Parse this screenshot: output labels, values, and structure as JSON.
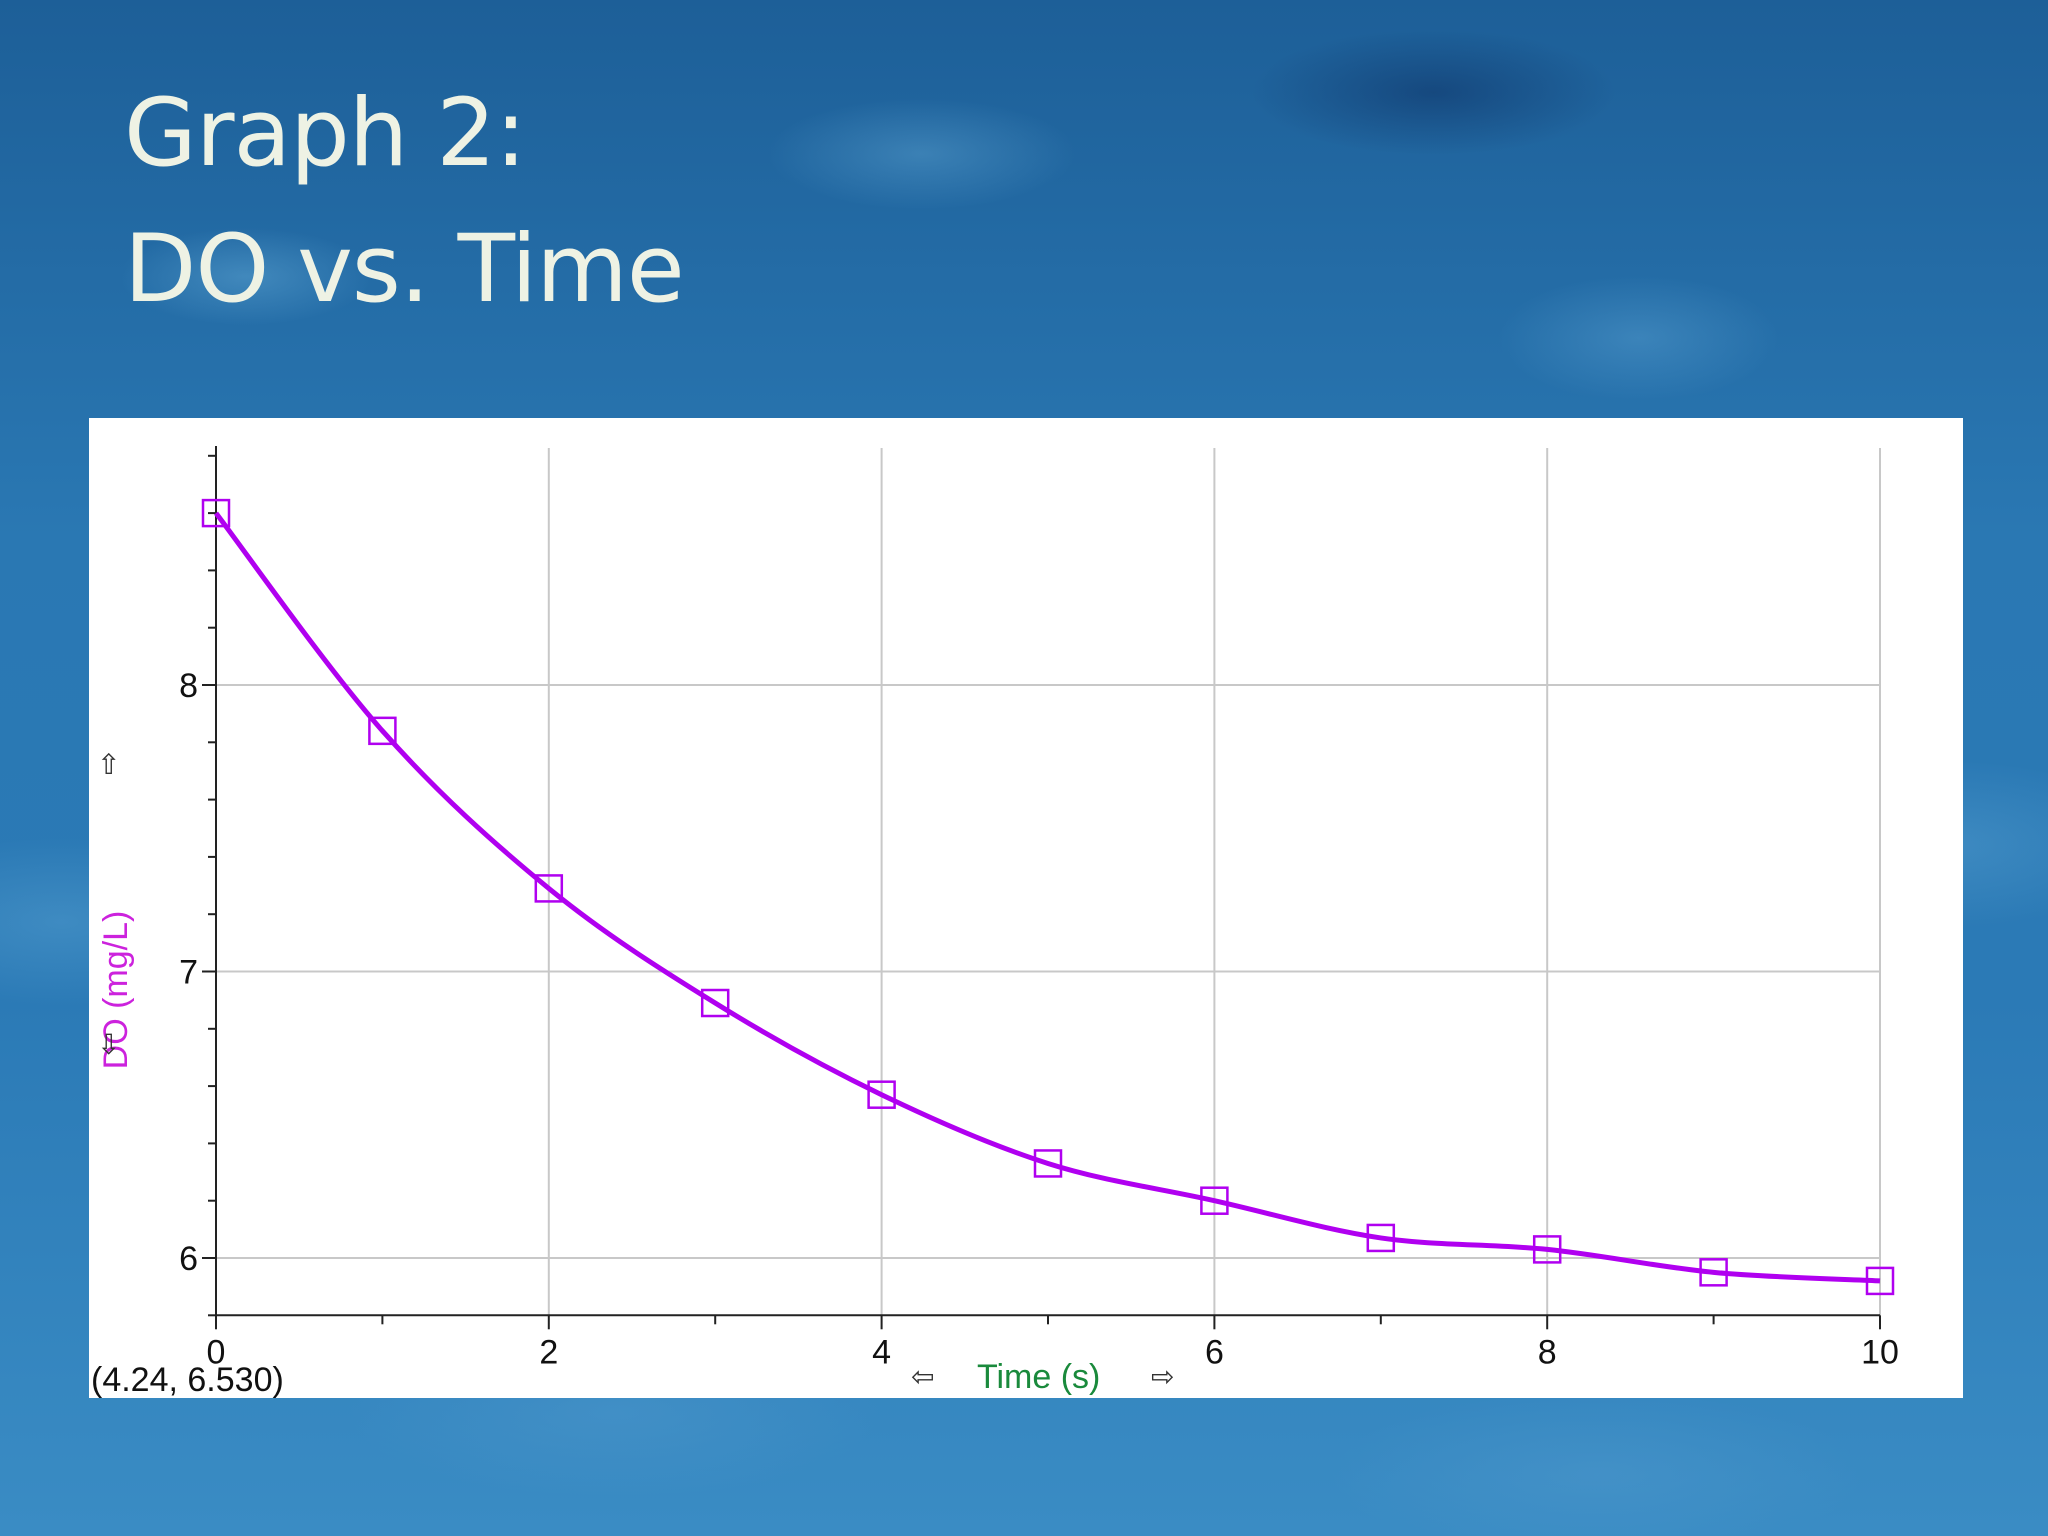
{
  "slide": {
    "title_line1": "Graph 2:",
    "title_line2": "DO vs. Time"
  },
  "readout": "(4.24, 6.530)",
  "arrows": {
    "left": "⇦",
    "right": "⇨",
    "up": "⇧",
    "down": "⇩"
  },
  "colors": {
    "series": "#b000f0",
    "xlabel": "#1a8a3c",
    "ylabel": "#cc22dd",
    "grid": "#c8c8c8"
  },
  "chart_data": {
    "type": "line",
    "title": "",
    "xlabel": "Time (s)",
    "ylabel": "DO (mg/L)",
    "xlim": [
      0,
      10
    ],
    "ylim": [
      5.8,
      8.8
    ],
    "xticks": [
      0,
      2,
      4,
      6,
      8,
      10
    ],
    "yticks": [
      6,
      7,
      8
    ],
    "grid": true,
    "markers": "open-square",
    "series": [
      {
        "x": [
          0,
          1,
          2,
          3,
          4,
          5,
          6,
          7,
          8,
          9,
          10
        ],
        "y": [
          8.6,
          7.84,
          7.29,
          6.89,
          6.57,
          6.33,
          6.2,
          6.07,
          6.03,
          5.95,
          5.92
        ]
      }
    ]
  }
}
